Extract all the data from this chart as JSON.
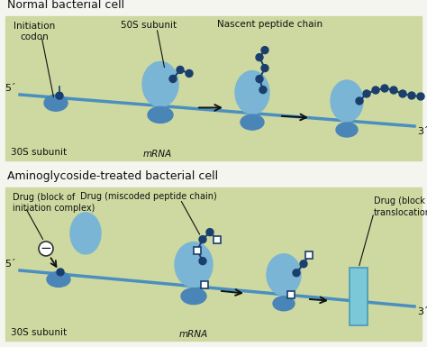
{
  "panel_bg": "#cdd9a0",
  "white_bg": "#f5f5f0",
  "mrna_color": "#4a8fc0",
  "s30_color": "#4a85b8",
  "s50_color": "#7ab5d5",
  "dot_color": "#1a3f6e",
  "sq_fill": "#ffffff",
  "sq_edge": "#1a3f6e",
  "block_fill": "#7ac8d8",
  "block_edge": "#4a9ab8",
  "minus_fill": "#ffffff",
  "minus_edge": "#333333",
  "arrow_color": "#111111",
  "text_color": "#111111",
  "title1": "Normal bacterial cell",
  "title2": "Aminoglycoside-treated bacterial cell",
  "lbl_init": "Initiation\ncodon",
  "lbl_50s": "50S subunit",
  "lbl_nascent": "Nascent peptide chain",
  "lbl_30s": "30S subunit",
  "lbl_mrna": "mRNA",
  "lbl_5p": "5´",
  "lbl_3p": "3´",
  "lbl_drug_init": "Drug (block of\ninitiation complex)",
  "lbl_drug_misc": "Drug (miscoded peptide chain)",
  "lbl_drug_trans": "Drug (block of\ntranslocation)"
}
